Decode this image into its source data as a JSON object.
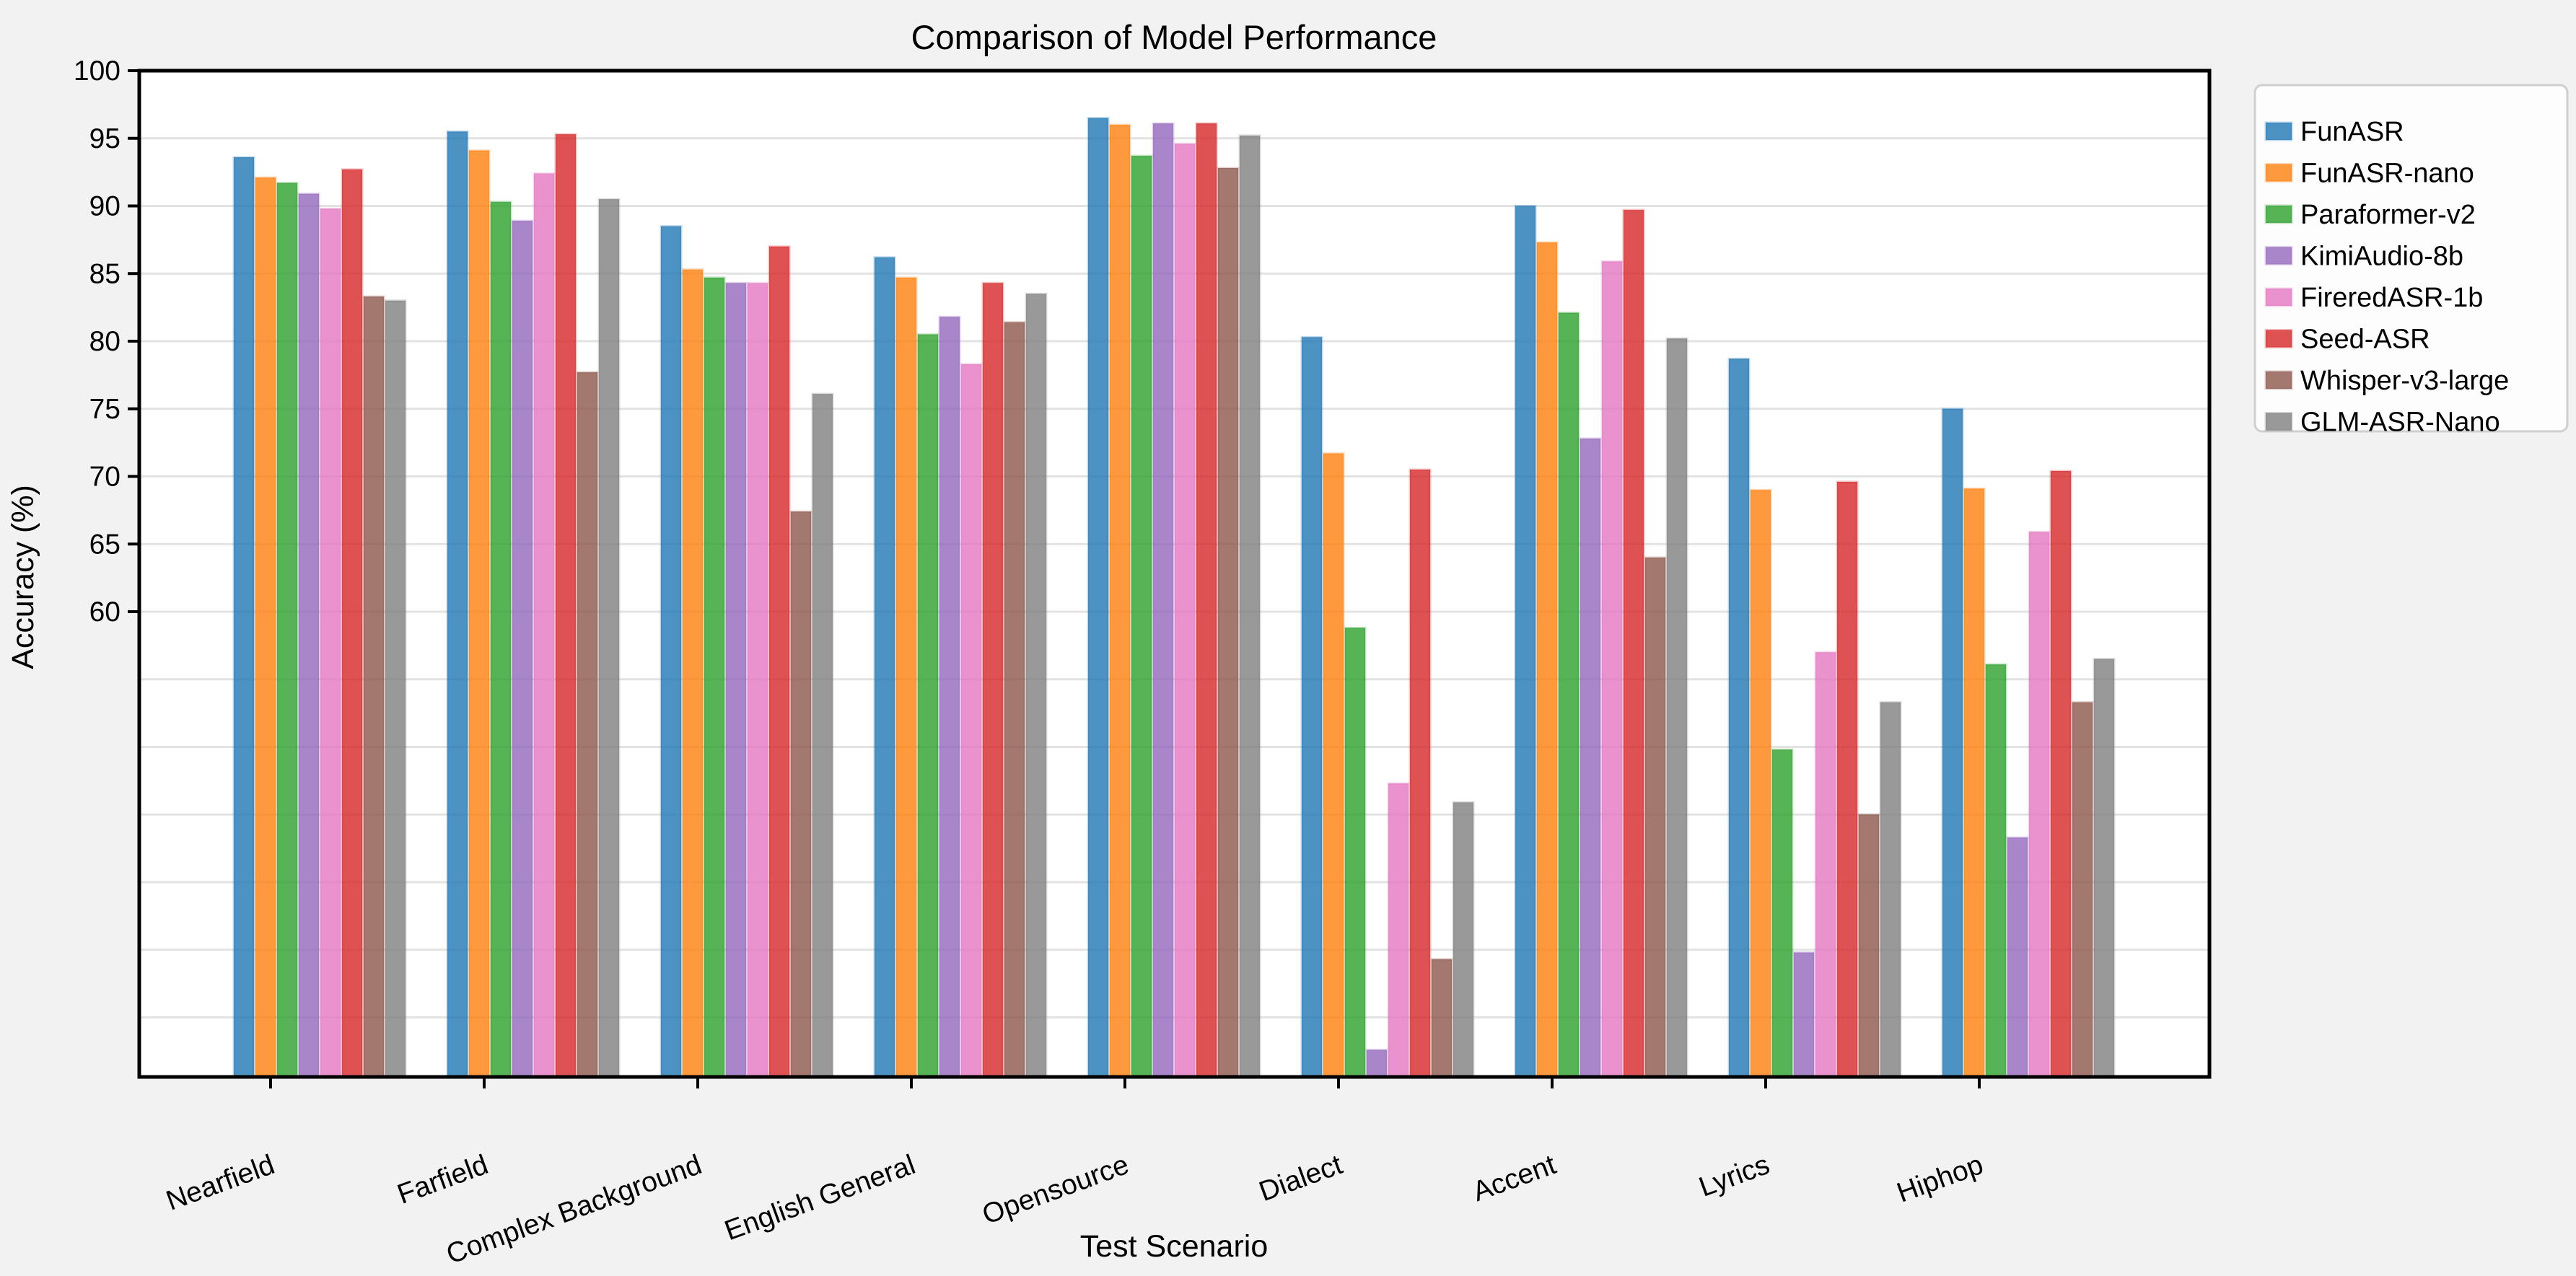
{
  "figure": {
    "background": "#f2f2f2"
  },
  "chart_data": {
    "type": "bar",
    "title": "Comparison of Model Performance",
    "xlabel": "Test Scenario",
    "ylabel": "Accuracy (%)",
    "categories": [
      "Nearfield",
      "Farfield",
      "Complex Background",
      "English General",
      "Opensource",
      "Dialect",
      "Accent",
      "Lyrics",
      "Hiphop"
    ],
    "series": [
      {
        "name": "FunASR",
        "color": "#1f77b4",
        "values": [
          93.6,
          95.5,
          88.5,
          86.2,
          96.5,
          80.3,
          90.0,
          78.7,
          75.0
        ]
      },
      {
        "name": "FunASR-nano",
        "color": "#ff7f0e",
        "values": [
          92.1,
          94.1,
          85.3,
          84.7,
          96.0,
          71.7,
          87.3,
          69.0,
          69.1
        ]
      },
      {
        "name": "Paraformer-v2",
        "color": "#2ca02c",
        "values": [
          91.7,
          90.3,
          84.7,
          80.5,
          93.7,
          58.8,
          82.1,
          49.8,
          56.1
        ]
      },
      {
        "name": "KimiAudio-8b",
        "color": "#9467bd",
        "values": [
          90.9,
          88.9,
          84.3,
          81.8,
          96.1,
          27.6,
          72.8,
          34.8,
          43.3
        ]
      },
      {
        "name": "FireredASR-1b",
        "color": "#e377c2",
        "values": [
          89.8,
          92.4,
          84.3,
          78.3,
          94.6,
          47.3,
          85.9,
          57.0,
          65.9
        ]
      },
      {
        "name": "Seed-ASR",
        "color": "#d62728",
        "values": [
          92.7,
          95.3,
          87.0,
          84.3,
          96.1,
          70.5,
          89.7,
          69.6,
          70.4
        ]
      },
      {
        "name": "Whisper-v3-large",
        "color": "#8c564b",
        "values": [
          83.3,
          77.7,
          67.4,
          81.4,
          92.8,
          34.3,
          64.0,
          45.0,
          53.3
        ]
      },
      {
        "name": "GLM-ASR-Nano",
        "color": "#7f7f7f",
        "values": [
          83.0,
          90.5,
          76.1,
          83.5,
          95.2,
          45.9,
          80.2,
          53.3,
          56.5
        ]
      }
    ],
    "bar_alpha": 0.8,
    "ylim": [
      25.6,
      100
    ],
    "ytick_labels": [
      "60",
      "65",
      "70",
      "75",
      "80",
      "85",
      "90",
      "95",
      "100"
    ],
    "ytick_values": [
      60,
      65,
      70,
      75,
      80,
      85,
      90,
      95,
      100
    ],
    "gridline_values": [
      30,
      35,
      40,
      45,
      50,
      55,
      60,
      65,
      70,
      75,
      80,
      85,
      90,
      95
    ],
    "grid": true,
    "legend_position": "upper-right-outside",
    "styles": {
      "figure_bg": "#f2f2f2",
      "axes_bg": "#ffffff",
      "grid_color": "#e3e3e3",
      "spine_color": "#000000",
      "legend_bg": "#fdfdfd",
      "legend_border": "#cfcfcf",
      "text_color": "#000000"
    }
  }
}
